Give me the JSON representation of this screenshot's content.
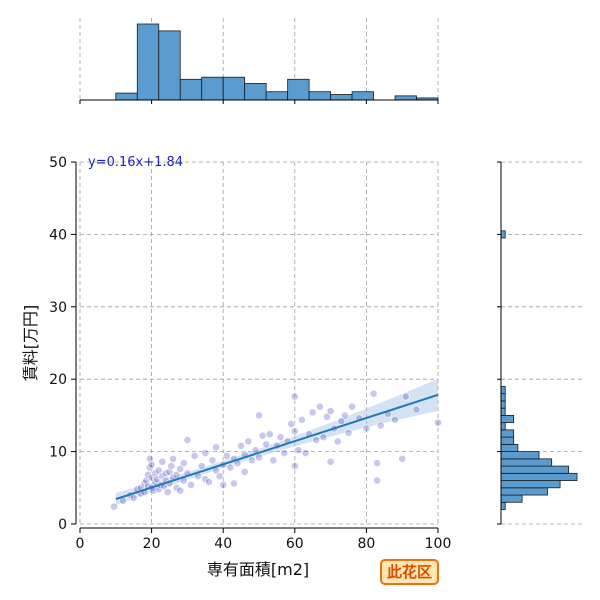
{
  "chart_data": {
    "type": "scatter",
    "xlabel": "専有面積[m2]",
    "ylabel": "賃料[万円]",
    "xlim": [
      0,
      100
    ],
    "ylim": [
      0,
      50
    ],
    "xticks": [
      "0",
      "20",
      "40",
      "60",
      "80",
      "100"
    ],
    "yticks": [
      "0",
      "10",
      "20",
      "30",
      "40",
      "50"
    ],
    "grid": true,
    "regression": {
      "label": "y=0.16x+1.84",
      "slope": 0.16,
      "intercept": 1.84,
      "x_range": [
        10,
        100
      ]
    },
    "points": [
      [
        9.5,
        2.4
      ],
      [
        12,
        3.2
      ],
      [
        14,
        4.0
      ],
      [
        15,
        3.6
      ],
      [
        16,
        4.8
      ],
      [
        17,
        5.0
      ],
      [
        17,
        4.2
      ],
      [
        18,
        5.6
      ],
      [
        18,
        4.4
      ],
      [
        18.5,
        6.0
      ],
      [
        19,
        6.8
      ],
      [
        19,
        5.2
      ],
      [
        19.5,
        9.0
      ],
      [
        19.5,
        7.8
      ],
      [
        20,
        8.2
      ],
      [
        20,
        6.4
      ],
      [
        20,
        5.0
      ],
      [
        20.5,
        4.6
      ],
      [
        21,
        7.0
      ],
      [
        21,
        5.8
      ],
      [
        21.5,
        6.2
      ],
      [
        22,
        7.4
      ],
      [
        22,
        4.8
      ],
      [
        22.5,
        5.4
      ],
      [
        23,
        6.6
      ],
      [
        23,
        8.6
      ],
      [
        23.5,
        5.2
      ],
      [
        24,
        7.0
      ],
      [
        24,
        6.0
      ],
      [
        24.5,
        4.4
      ],
      [
        25,
        7.2
      ],
      [
        25,
        5.6
      ],
      [
        25.5,
        8.0
      ],
      [
        26,
        6.4
      ],
      [
        26,
        9.0
      ],
      [
        27,
        5.0
      ],
      [
        27,
        6.8
      ],
      [
        28,
        7.6
      ],
      [
        28,
        4.6
      ],
      [
        29,
        8.4
      ],
      [
        29,
        6.0
      ],
      [
        30,
        7.0
      ],
      [
        30,
        11.6
      ],
      [
        31,
        5.4
      ],
      [
        32,
        9.4
      ],
      [
        33,
        6.6
      ],
      [
        34,
        8.0
      ],
      [
        35,
        9.8
      ],
      [
        35,
        6.2
      ],
      [
        36,
        5.8
      ],
      [
        37,
        8.8
      ],
      [
        38,
        7.4
      ],
      [
        38,
        10.6
      ],
      [
        39,
        6.6
      ],
      [
        40,
        8.2
      ],
      [
        40,
        5.4
      ],
      [
        41,
        9.4
      ],
      [
        42,
        7.8
      ],
      [
        43,
        9.0
      ],
      [
        43,
        5.6
      ],
      [
        44,
        8.4
      ],
      [
        45,
        10.8
      ],
      [
        46,
        7.2
      ],
      [
        46,
        9.6
      ],
      [
        47,
        11.4
      ],
      [
        48,
        8.8
      ],
      [
        49,
        10.2
      ],
      [
        50,
        9.2
      ],
      [
        50,
        15.0
      ],
      [
        51,
        12.2
      ],
      [
        52,
        11.0
      ],
      [
        53,
        12.4
      ],
      [
        54,
        8.8
      ],
      [
        55,
        10.8
      ],
      [
        56,
        12.0
      ],
      [
        57,
        9.8
      ],
      [
        58,
        11.4
      ],
      [
        59,
        13.8
      ],
      [
        60,
        8.0
      ],
      [
        60,
        12.8
      ],
      [
        60,
        17.6
      ],
      [
        61,
        10.2
      ],
      [
        62,
        14.4
      ],
      [
        63,
        9.8
      ],
      [
        64,
        12.4
      ],
      [
        65,
        15.4
      ],
      [
        66,
        11.6
      ],
      [
        67,
        16.2
      ],
      [
        68,
        12.0
      ],
      [
        69,
        14.8
      ],
      [
        70,
        8.6
      ],
      [
        70,
        15.6
      ],
      [
        71,
        13.2
      ],
      [
        72,
        11.4
      ],
      [
        73,
        14.2
      ],
      [
        74,
        15.0
      ],
      [
        75,
        12.6
      ],
      [
        76,
        16.2
      ],
      [
        78,
        14.6
      ],
      [
        80,
        13.2
      ],
      [
        82,
        18.0
      ],
      [
        83,
        6.0
      ],
      [
        83,
        8.4
      ],
      [
        84,
        13.6
      ],
      [
        86,
        15.2
      ],
      [
        88,
        14.4
      ],
      [
        90,
        9.0
      ],
      [
        91,
        17.6
      ],
      [
        94,
        15.8
      ],
      [
        100,
        14.0
      ]
    ],
    "top_histogram": {
      "bins": [
        [
          10,
          16,
          1
        ],
        [
          16,
          22,
          11
        ],
        [
          22,
          28,
          10
        ],
        [
          28,
          34,
          3
        ],
        [
          34,
          40,
          3.3
        ],
        [
          40,
          46,
          3.3
        ],
        [
          46,
          52,
          2.4
        ],
        [
          52,
          58,
          1.2
        ],
        [
          58,
          64,
          3.0
        ],
        [
          64,
          70,
          1.2
        ],
        [
          70,
          76,
          0.8
        ],
        [
          76,
          82,
          1.2
        ],
        [
          82,
          88,
          0
        ],
        [
          88,
          94,
          0.6
        ],
        [
          94,
          100,
          0.3
        ]
      ]
    },
    "right_histogram": {
      "bins": [
        [
          2,
          3,
          1
        ],
        [
          3,
          4,
          5
        ],
        [
          4,
          5,
          11
        ],
        [
          5,
          6,
          14
        ],
        [
          6,
          7,
          18
        ],
        [
          7,
          8,
          16
        ],
        [
          8,
          9,
          12
        ],
        [
          9,
          10,
          9
        ],
        [
          10,
          11,
          4
        ],
        [
          11,
          12,
          3
        ],
        [
          12,
          13,
          3
        ],
        [
          13,
          14,
          1
        ],
        [
          14,
          15,
          3
        ],
        [
          15,
          16,
          1
        ],
        [
          16,
          17,
          1
        ],
        [
          17,
          18,
          1
        ],
        [
          18,
          19,
          1
        ],
        [
          39.5,
          40.5,
          1
        ]
      ]
    }
  },
  "colors": {
    "scatter_fill": "#3b3bbf",
    "line": "#1f77b4",
    "ci_band": "#a9c8e8",
    "hist_bar": "#5a9bd0",
    "grid": "#9e9e9e",
    "badge_border": "#f07018",
    "badge_fill": "#ffe7b0",
    "badge_text": "#e04a00"
  },
  "badge": {
    "label": "此花区"
  }
}
